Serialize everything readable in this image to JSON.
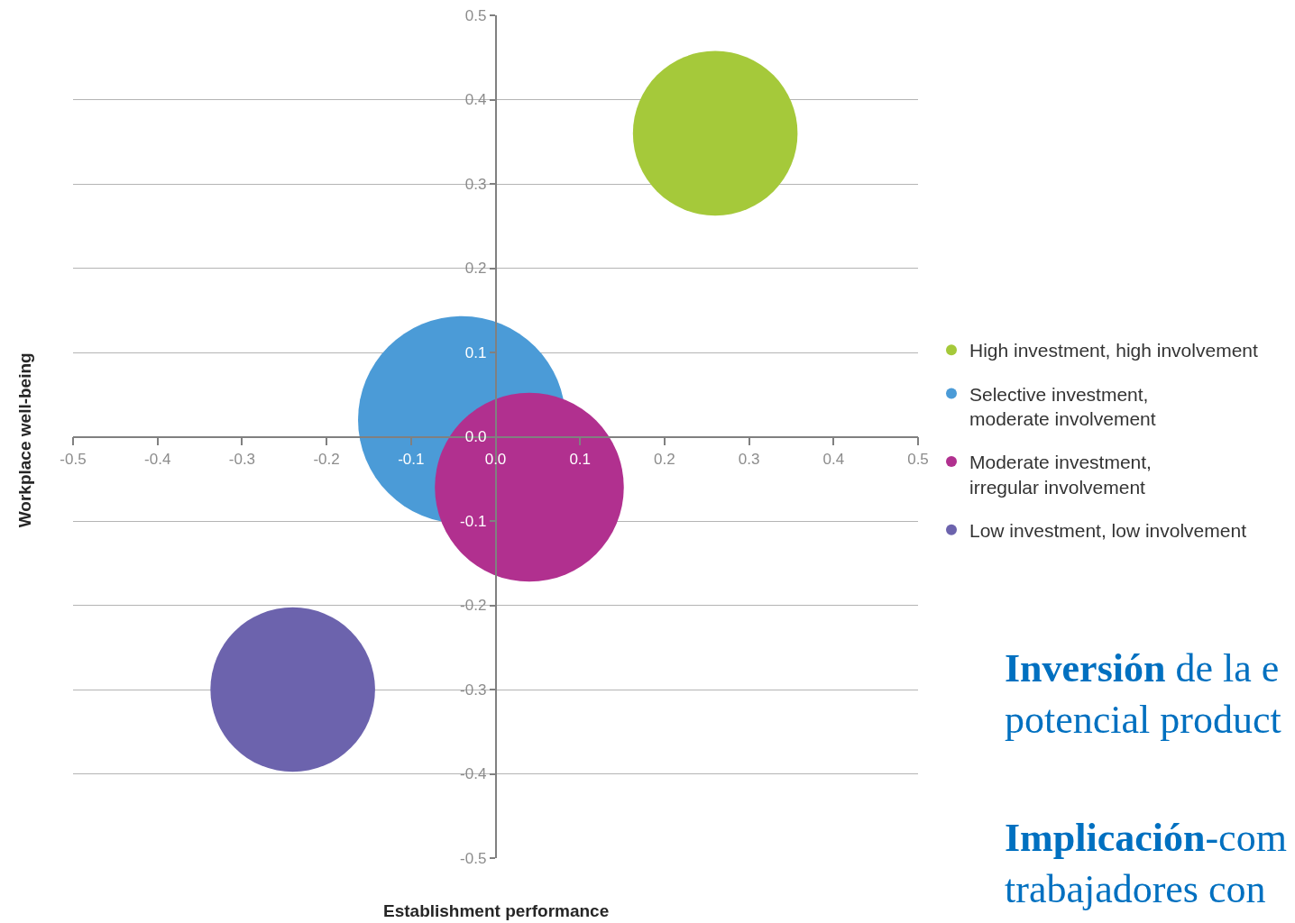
{
  "chart_data": {
    "type": "bubble",
    "xlabel": "Establishment performance",
    "ylabel": "Workplace well-being",
    "xlim": [
      -0.5,
      0.5
    ],
    "xticks": [
      -0.5,
      -0.4,
      -0.3,
      -0.2,
      -0.1,
      {
        "value": 0,
        "label": "0.0"
      },
      0.1,
      0.2,
      0.3,
      0.4,
      0.5
    ],
    "ylim": [
      -0.5,
      0.5
    ],
    "yticks": [
      -0.5,
      -0.4,
      -0.3,
      -0.2,
      -0.1,
      {
        "value": 0,
        "label": "0.0"
      },
      0.1,
      0.2,
      0.3,
      0.4,
      0.5
    ],
    "grid": "y",
    "legend": "right",
    "marker": "circle",
    "series": [
      {
        "name": "High investment, high involvement",
        "color": "#a5c93a",
        "x": [
          0.26
        ],
        "values": [
          0.36
        ],
        "sizes": [
          0.63
        ]
      },
      {
        "name": "Selective investment, moderate involvement",
        "color": "#4b9bd7",
        "x": [
          -0.04
        ],
        "values": [
          0.02
        ],
        "sizes": [
          1
        ]
      },
      {
        "name": "Moderate investment, irregular involvement",
        "color": "#b1308f",
        "x": [
          0.04
        ],
        "values": [
          -0.06
        ],
        "sizes": [
          0.83
        ]
      },
      {
        "name": "Low investment, low involvement",
        "color": "#6c63ad",
        "x": [
          -0.24
        ],
        "values": [
          -0.3
        ],
        "sizes": [
          0.63
        ]
      }
    ],
    "annotations": [
      "Inversión de la e\npotencial product",
      "Implicación-com\ntrabajadores con"
    ]
  }
}
